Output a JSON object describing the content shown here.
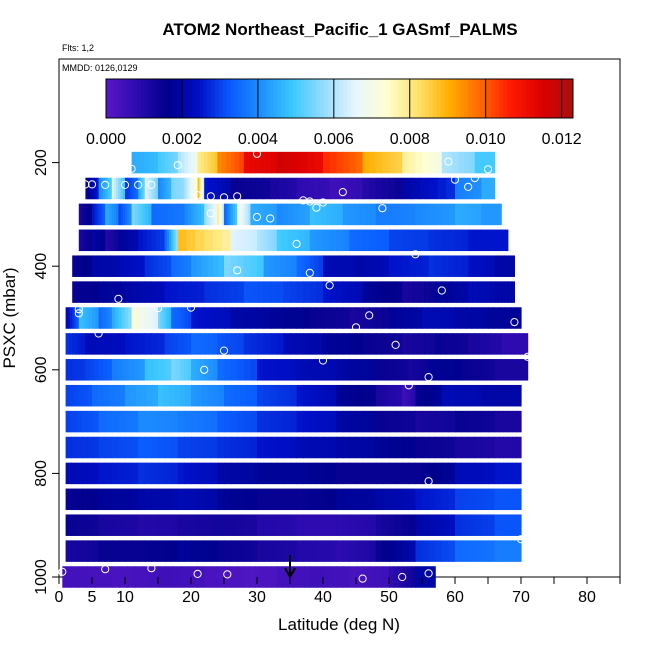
{
  "chart_data": {
    "type": "heatmap",
    "title": "ATOM2 Northeast_Pacific_1 GASmf_PALMS",
    "flights_label": "Flts: 1,2",
    "dates_label": "MMDD: 0126,0129",
    "xlabel": "Latitude (deg N)",
    "ylabel": "PSXC (mbar)",
    "xlim": [
      0,
      85
    ],
    "ylim": [
      1000,
      0
    ],
    "x_ticks": [
      0,
      5,
      10,
      20,
      30,
      40,
      50,
      60,
      70,
      80
    ],
    "x_tick_labels": [
      "0",
      "5",
      "10",
      "20",
      "30",
      "40",
      "50",
      "60",
      "70",
      "80"
    ],
    "y_ticks": [
      200,
      400,
      600,
      800,
      1000
    ],
    "y_tick_labels": [
      "200",
      "400",
      "600",
      "800",
      "1000"
    ],
    "colorbar": {
      "range": [
        0,
        0.0123
      ],
      "ticks": [
        0,
        0.002,
        0.004,
        0.006,
        0.008,
        0.01,
        0.012
      ],
      "tick_labels": [
        "0.000",
        "0.002",
        "0.004",
        "0.006",
        "0.008",
        "0.010",
        "0.012"
      ],
      "colors": [
        "#5a18c8",
        "#2c0bb0",
        "#00008c",
        "#0010c8",
        "#0a5cff",
        "#1e90ff",
        "#3cc8ff",
        "#96dcff",
        "#e6f6ff",
        "#ffffd0",
        "#ffe36e",
        "#ffb000",
        "#ff6a00",
        "#ff1a00",
        "#dc0000",
        "#a81010"
      ]
    },
    "marker_latitude": 35,
    "rows": [
      {
        "p": 200,
        "lat_min": 11,
        "lat_max": 66,
        "segments": [
          [
            11,
            0.0045
          ],
          [
            15,
            0.005
          ],
          [
            18,
            0.006
          ],
          [
            21,
            0.008
          ],
          [
            24,
            0.0095
          ],
          [
            28,
            0.0112
          ],
          [
            33,
            0.0117
          ],
          [
            40,
            0.0105
          ],
          [
            46,
            0.009
          ],
          [
            52,
            0.0078
          ],
          [
            58,
            0.006
          ],
          [
            63,
            0.005
          ]
        ]
      },
      {
        "p": 250,
        "lat_min": 4,
        "lat_max": 66,
        "segments": [
          [
            4,
            0.0015
          ],
          [
            6,
            0.004
          ],
          [
            8,
            0.0065
          ],
          [
            10,
            0.0028
          ],
          [
            12,
            0.0045
          ],
          [
            13,
            0.0065
          ],
          [
            15,
            0.004
          ],
          [
            17,
            0.0055
          ],
          [
            19,
            0.006
          ],
          [
            21,
            0.009
          ],
          [
            22,
            0.0025
          ],
          [
            26,
            0.0015
          ],
          [
            32,
            0.0012
          ],
          [
            36,
            0.0008
          ],
          [
            41,
            0.0005
          ],
          [
            46,
            0.001
          ],
          [
            52,
            0.002
          ],
          [
            60,
            0.0038
          ],
          [
            64,
            0.0045
          ]
        ]
      },
      {
        "p": 300,
        "lat_min": 3,
        "lat_max": 67,
        "segments": [
          [
            3,
            0.0012
          ],
          [
            5,
            0.0025
          ],
          [
            7,
            0.0045
          ],
          [
            9,
            0.003
          ],
          [
            11,
            0.0055
          ],
          [
            14,
            0.0035
          ],
          [
            19,
            0.004
          ],
          [
            22,
            0.0058
          ],
          [
            24,
            0.008
          ],
          [
            25,
            0.0035
          ],
          [
            27,
            0.007
          ],
          [
            29,
            0.0045
          ],
          [
            33,
            0.004
          ],
          [
            38,
            0.0048
          ],
          [
            43,
            0.0042
          ],
          [
            48,
            0.0038
          ],
          [
            54,
            0.004
          ],
          [
            60,
            0.0045
          ],
          [
            64,
            0.0042
          ]
        ]
      },
      {
        "p": 350,
        "lat_min": 3,
        "lat_max": 68,
        "segments": [
          [
            3,
            0.0012
          ],
          [
            5,
            0.002
          ],
          [
            7,
            0.001
          ],
          [
            9,
            0.0018
          ],
          [
            12,
            0.0025
          ],
          [
            16,
            0.0035
          ],
          [
            18,
            0.0088
          ],
          [
            26,
            0.0065
          ],
          [
            30,
            0.006
          ],
          [
            33,
            0.005
          ],
          [
            38,
            0.0042
          ],
          [
            44,
            0.0035
          ],
          [
            50,
            0.003
          ],
          [
            56,
            0.0028
          ],
          [
            62,
            0.0025
          ]
        ]
      },
      {
        "p": 400,
        "lat_min": 2,
        "lat_max": 69,
        "segments": [
          [
            2,
            0.0015
          ],
          [
            5,
            0.002
          ],
          [
            9,
            0.0022
          ],
          [
            13,
            0.0028
          ],
          [
            17,
            0.0035
          ],
          [
            20,
            0.0042
          ],
          [
            25,
            0.0055
          ],
          [
            31,
            0.0042
          ],
          [
            36,
            0.0035
          ],
          [
            40,
            0.0022
          ],
          [
            45,
            0.002
          ],
          [
            50,
            0.0025
          ],
          [
            56,
            0.0028
          ],
          [
            62,
            0.0024
          ],
          [
            66,
            0.002
          ]
        ]
      },
      {
        "p": 450,
        "lat_min": 2,
        "lat_max": 69,
        "segments": [
          [
            2,
            0.0015
          ],
          [
            6,
            0.0018
          ],
          [
            10,
            0.002
          ],
          [
            16,
            0.0025
          ],
          [
            22,
            0.0028
          ],
          [
            28,
            0.0032
          ],
          [
            34,
            0.003
          ],
          [
            40,
            0.0025
          ],
          [
            46,
            0.0018
          ],
          [
            52,
            0.0012
          ],
          [
            57,
            0.0018
          ],
          [
            62,
            0.0022
          ],
          [
            66,
            0.002
          ]
        ]
      },
      {
        "p": 500,
        "lat_min": 1,
        "lat_max": 70,
        "segments": [
          [
            1,
            0.0022
          ],
          [
            3,
            0.0048
          ],
          [
            6,
            0.0035
          ],
          [
            8,
            0.0045
          ],
          [
            11,
            0.0072
          ],
          [
            15,
            0.0055
          ],
          [
            17,
            0.0035
          ],
          [
            20,
            0.0025
          ],
          [
            26,
            0.002
          ],
          [
            32,
            0.0018
          ],
          [
            38,
            0.0015
          ],
          [
            44,
            0.0012
          ],
          [
            50,
            0.0018
          ],
          [
            55,
            0.0022
          ],
          [
            60,
            0.002
          ],
          [
            65,
            0.0018
          ]
        ]
      },
      {
        "p": 550,
        "lat_min": 1,
        "lat_max": 71,
        "segments": [
          [
            1,
            0.0028
          ],
          [
            4,
            0.0022
          ],
          [
            10,
            0.0025
          ],
          [
            16,
            0.003
          ],
          [
            20,
            0.0035
          ],
          [
            24,
            0.0032
          ],
          [
            28,
            0.0028
          ],
          [
            34,
            0.0022
          ],
          [
            40,
            0.0018
          ],
          [
            46,
            0.0015
          ],
          [
            52,
            0.0012
          ],
          [
            57,
            0.0015
          ],
          [
            62,
            0.0012
          ],
          [
            67,
            0.0008
          ]
        ]
      },
      {
        "p": 600,
        "lat_min": 1,
        "lat_max": 71,
        "segments": [
          [
            1,
            0.0028
          ],
          [
            4,
            0.003
          ],
          [
            8,
            0.0038
          ],
          [
            13,
            0.0048
          ],
          [
            17,
            0.0055
          ],
          [
            20,
            0.0045
          ],
          [
            24,
            0.0035
          ],
          [
            30,
            0.0025
          ],
          [
            36,
            0.0022
          ],
          [
            42,
            0.002
          ],
          [
            48,
            0.0015
          ],
          [
            53,
            0.0012
          ],
          [
            56,
            0.0018
          ],
          [
            61,
            0.0015
          ],
          [
            66,
            0.0012
          ]
        ]
      },
      {
        "p": 650,
        "lat_min": 1,
        "lat_max": 70,
        "segments": [
          [
            1,
            0.003
          ],
          [
            5,
            0.0035
          ],
          [
            10,
            0.0042
          ],
          [
            15,
            0.0048
          ],
          [
            20,
            0.0042
          ],
          [
            25,
            0.0035
          ],
          [
            30,
            0.003
          ],
          [
            36,
            0.0025
          ],
          [
            42,
            0.0018
          ],
          [
            48,
            0.0012
          ],
          [
            52,
            0.0005
          ],
          [
            54,
            0.0015
          ],
          [
            58,
            0.0022
          ],
          [
            64,
            0.002
          ]
        ]
      },
      {
        "p": 700,
        "lat_min": 1,
        "lat_max": 70,
        "segments": [
          [
            1,
            0.003
          ],
          [
            6,
            0.0035
          ],
          [
            12,
            0.004
          ],
          [
            18,
            0.0038
          ],
          [
            24,
            0.0033
          ],
          [
            30,
            0.0028
          ],
          [
            36,
            0.0025
          ],
          [
            42,
            0.002
          ],
          [
            48,
            0.0015
          ],
          [
            54,
            0.0012
          ],
          [
            60,
            0.0015
          ],
          [
            66,
            0.0012
          ]
        ]
      },
      {
        "p": 750,
        "lat_min": 1,
        "lat_max": 70,
        "segments": [
          [
            1,
            0.0028
          ],
          [
            6,
            0.003
          ],
          [
            12,
            0.0033
          ],
          [
            18,
            0.003
          ],
          [
            24,
            0.0028
          ],
          [
            30,
            0.0025
          ],
          [
            36,
            0.0022
          ],
          [
            42,
            0.002
          ],
          [
            48,
            0.0018
          ],
          [
            54,
            0.0015
          ],
          [
            60,
            0.0012
          ],
          [
            66,
            0.001
          ]
        ]
      },
      {
        "p": 800,
        "lat_min": 1,
        "lat_max": 70,
        "segments": [
          [
            1,
            0.0022
          ],
          [
            6,
            0.0025
          ],
          [
            12,
            0.0028
          ],
          [
            18,
            0.0025
          ],
          [
            24,
            0.002
          ],
          [
            30,
            0.0018
          ],
          [
            36,
            0.0018
          ],
          [
            42,
            0.0015
          ],
          [
            48,
            0.0015
          ],
          [
            54,
            0.0015
          ],
          [
            60,
            0.0022
          ],
          [
            66,
            0.0025
          ]
        ]
      },
      {
        "p": 850,
        "lat_min": 1,
        "lat_max": 70,
        "segments": [
          [
            1,
            0.0015
          ],
          [
            6,
            0.0018
          ],
          [
            12,
            0.002
          ],
          [
            18,
            0.0022
          ],
          [
            24,
            0.0018
          ],
          [
            30,
            0.0015
          ],
          [
            36,
            0.0015
          ],
          [
            42,
            0.0018
          ],
          [
            48,
            0.002
          ],
          [
            54,
            0.0025
          ],
          [
            60,
            0.003
          ],
          [
            66,
            0.0032
          ]
        ]
      },
      {
        "p": 900,
        "lat_min": 1,
        "lat_max": 70,
        "segments": [
          [
            1,
            0.0015
          ],
          [
            6,
            0.0012
          ],
          [
            12,
            0.001
          ],
          [
            18,
            0.0012
          ],
          [
            24,
            0.0013
          ],
          [
            30,
            0.001
          ],
          [
            36,
            0.0008
          ],
          [
            42,
            0.0008
          ],
          [
            48,
            0.0012
          ],
          [
            54,
            0.002
          ],
          [
            60,
            0.0028
          ],
          [
            66,
            0.0032
          ]
        ]
      },
      {
        "p": 950,
        "lat_min": 1,
        "lat_max": 70,
        "segments": [
          [
            1,
            0.0012
          ],
          [
            6,
            0.0015
          ],
          [
            12,
            0.0015
          ],
          [
            18,
            0.0018
          ],
          [
            24,
            0.0015
          ],
          [
            30,
            0.0012
          ],
          [
            36,
            0.001
          ],
          [
            42,
            0.0008
          ],
          [
            48,
            0.0015
          ],
          [
            54,
            0.0028
          ],
          [
            60,
            0.0035
          ],
          [
            66,
            0.0038
          ]
        ]
      },
      {
        "p": 1000,
        "lat_min": 0.5,
        "lat_max": 57,
        "segments": [
          [
            0.5,
            0.0004
          ],
          [
            8,
            0.0003
          ],
          [
            15,
            0.0005
          ],
          [
            22,
            0.0003
          ],
          [
            28,
            0.0002
          ],
          [
            33,
            0.0004
          ],
          [
            38,
            0.0005
          ],
          [
            44,
            0.0003
          ],
          [
            50,
            0.0008
          ],
          [
            54,
            0.002
          ]
        ]
      }
    ],
    "points": [
      [
        0.5,
        990
      ],
      [
        7,
        985
      ],
      [
        14,
        983
      ],
      [
        21,
        994
      ],
      [
        25.5,
        995
      ],
      [
        46,
        1003
      ],
      [
        52,
        1000
      ],
      [
        56,
        993
      ],
      [
        11,
        212
      ],
      [
        18,
        205
      ],
      [
        30,
        183
      ],
      [
        59,
        198
      ],
      [
        63,
        230
      ],
      [
        65,
        213
      ],
      [
        4,
        242
      ],
      [
        5,
        242
      ],
      [
        7,
        243
      ],
      [
        10,
        243
      ],
      [
        12,
        243
      ],
      [
        14,
        243
      ],
      [
        60,
        233
      ],
      [
        62,
        247
      ],
      [
        21,
        263
      ],
      [
        23,
        265
      ],
      [
        25,
        267
      ],
      [
        27,
        265
      ],
      [
        37,
        273
      ],
      [
        38,
        275
      ],
      [
        40,
        277
      ],
      [
        43,
        257
      ],
      [
        39,
        287
      ],
      [
        49,
        288
      ],
      [
        23,
        298
      ],
      [
        30,
        305
      ],
      [
        32,
        308
      ],
      [
        36,
        357
      ],
      [
        54,
        377
      ],
      [
        27,
        408
      ],
      [
        38,
        413
      ],
      [
        41,
        437
      ],
      [
        58,
        447
      ],
      [
        9,
        463
      ],
      [
        3,
        483
      ],
      [
        3,
        491
      ],
      [
        15,
        481
      ],
      [
        20,
        480
      ],
      [
        47,
        495
      ],
      [
        45,
        518
      ],
      [
        69,
        508
      ],
      [
        71,
        518
      ],
      [
        6,
        530
      ],
      [
        51,
        552
      ],
      [
        25,
        563
      ],
      [
        40,
        582
      ],
      [
        71,
        575
      ],
      [
        22,
        600
      ],
      [
        56,
        614
      ],
      [
        53,
        630
      ],
      [
        56,
        815
      ],
      [
        70,
        927
      ]
    ]
  }
}
